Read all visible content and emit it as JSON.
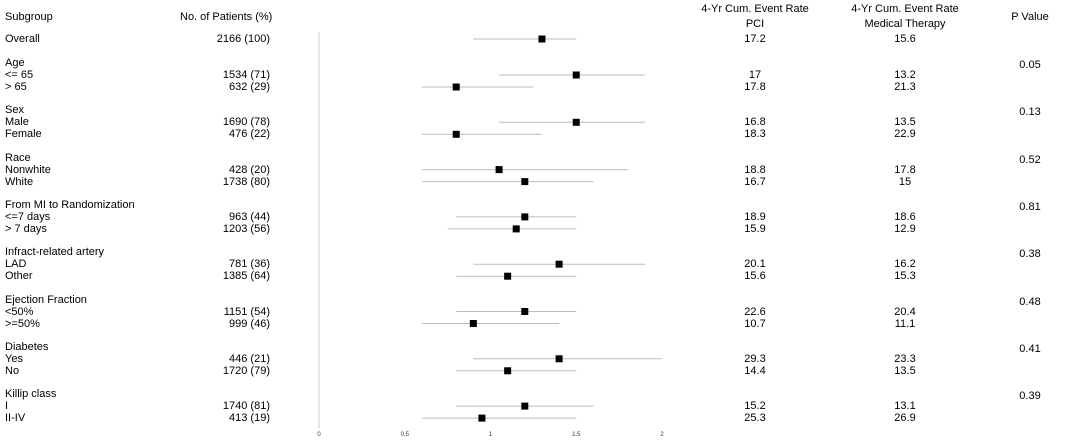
{
  "headers": {
    "subgroup": "Subgroup",
    "patients": "No. of Patients (%)",
    "pci_line1": "4-Yr Cum. Event Rate",
    "pci_line2": "PCI",
    "med_line1": "4-Yr Cum. Event Rate",
    "med_line2": "Medical Therapy",
    "pvalue": "P Value"
  },
  "overall": {
    "label": "Overall",
    "patients": "2166 (100)",
    "pci": "17.2",
    "med": "15.6"
  },
  "groups": [
    {
      "label": "Age",
      "pvalue": "0.05",
      "rows": [
        {
          "label": "<= 65",
          "patients": "1534 (71)",
          "pci": "17",
          "med": "13.2"
        },
        {
          "label": "> 65",
          "patients": "632 (29)",
          "pci": "17.8",
          "med": "21.3"
        }
      ]
    },
    {
      "label": "Sex",
      "pvalue": "0.13",
      "rows": [
        {
          "label": "Male",
          "patients": "1690 (78)",
          "pci": "16.8",
          "med": "13.5"
        },
        {
          "label": "Female",
          "patients": "476 (22)",
          "pci": "18.3",
          "med": "22.9"
        }
      ]
    },
    {
      "label": "Race",
      "pvalue": "0.52",
      "rows": [
        {
          "label": "Nonwhite",
          "patients": "428 (20)",
          "pci": "18.8",
          "med": "17.8"
        },
        {
          "label": "White",
          "patients": "1738 (80)",
          "pci": "16.7",
          "med": "15"
        }
      ]
    },
    {
      "label": "From MI to Randomization",
      "pvalue": "0.81",
      "rows": [
        {
          "label": "<=7 days",
          "patients": "963 (44)",
          "pci": "18.9",
          "med": "18.6"
        },
        {
          "label": "> 7 days",
          "patients": "1203 (56)",
          "pci": "15.9",
          "med": "12.9"
        }
      ]
    },
    {
      "label": "Infract-related artery",
      "pvalue": "0.38",
      "rows": [
        {
          "label": "LAD",
          "patients": "781 (36)",
          "pci": "20.1",
          "med": "16.2"
        },
        {
          "label": "Other",
          "patients": "1385 (64)",
          "pci": "15.6",
          "med": "15.3"
        }
      ]
    },
    {
      "label": "Ejection Fraction",
      "pvalue": "0.48",
      "rows": [
        {
          "label": "<50%",
          "patients": "1151 (54)",
          "pci": "22.6",
          "med": "20.4"
        },
        {
          "label": ">=50%",
          "patients": "999 (46)",
          "pci": "10.7",
          "med": "11.1"
        }
      ]
    },
    {
      "label": "Diabetes",
      "pvalue": "0.41",
      "rows": [
        {
          "label": "Yes",
          "patients": "446 (21)",
          "pci": "29.3",
          "med": "23.3"
        },
        {
          "label": "No",
          "patients": "1720 (79)",
          "pci": "14.4",
          "med": "13.5"
        }
      ]
    },
    {
      "label": "Killip class",
      "pvalue": "0.39",
      "rows": [
        {
          "label": "I",
          "patients": "1740 (81)",
          "pci": "15.2",
          "med": "13.1"
        },
        {
          "label": "II-IV",
          "patients": "413 (19)",
          "pci": "25.3",
          "med": "26.9"
        }
      ]
    }
  ],
  "chart_data": {
    "type": "forest",
    "xlim": [
      0,
      2
    ],
    "xticks": [
      0,
      0.5,
      1,
      1.5,
      2
    ],
    "tick_labels": [
      "0",
      "0.5",
      "1",
      "1.5",
      "2"
    ],
    "marker_color": "#000000",
    "ci_color": "#bbbbbb",
    "rows": [
      {
        "label": "Overall",
        "est": 1.3,
        "lo": 0.9,
        "hi": 1.5
      },
      {
        "label": "<= 65",
        "est": 1.5,
        "lo": 1.05,
        "hi": 1.9
      },
      {
        "label": "> 65",
        "est": 0.8,
        "lo": 0.6,
        "hi": 1.25
      },
      {
        "label": "Male",
        "est": 1.5,
        "lo": 1.05,
        "hi": 1.9
      },
      {
        "label": "Female",
        "est": 0.8,
        "lo": 0.6,
        "hi": 1.3
      },
      {
        "label": "Nonwhite",
        "est": 1.05,
        "lo": 0.6,
        "hi": 1.8
      },
      {
        "label": "White",
        "est": 1.2,
        "lo": 0.6,
        "hi": 1.6
      },
      {
        "label": "<=7 days",
        "est": 1.2,
        "lo": 0.8,
        "hi": 1.5
      },
      {
        "label": "> 7 days",
        "est": 1.15,
        "lo": 0.75,
        "hi": 1.5
      },
      {
        "label": "LAD",
        "est": 1.4,
        "lo": 0.9,
        "hi": 1.9
      },
      {
        "label": "Other",
        "est": 1.1,
        "lo": 0.8,
        "hi": 1.5
      },
      {
        "label": "<50%",
        "est": 1.2,
        "lo": 0.8,
        "hi": 1.5
      },
      {
        "label": ">=50%",
        "est": 0.9,
        "lo": 0.6,
        "hi": 1.4
      },
      {
        "label": "Yes",
        "est": 1.4,
        "lo": 0.9,
        "hi": 2.0
      },
      {
        "label": "No",
        "est": 1.1,
        "lo": 0.8,
        "hi": 1.5
      },
      {
        "label": "I",
        "est": 1.2,
        "lo": 0.8,
        "hi": 1.6
      },
      {
        "label": "II-IV",
        "est": 0.95,
        "lo": 0.6,
        "hi": 1.5
      }
    ]
  }
}
